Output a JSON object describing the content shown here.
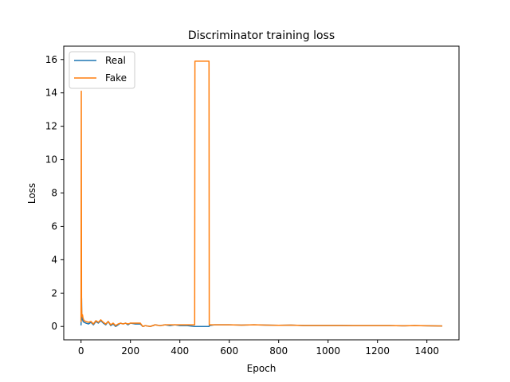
{
  "chart_data": {
    "type": "line",
    "title": "Discriminator training loss",
    "xlabel": "Epoch",
    "ylabel": "Loss",
    "xlim": [
      -70,
      1530
    ],
    "ylim": [
      -0.8,
      16.8
    ],
    "xticks": [
      0,
      200,
      400,
      600,
      800,
      1000,
      1200,
      1400
    ],
    "yticks": [
      0,
      2,
      4,
      6,
      8,
      10,
      12,
      14,
      16
    ],
    "grid": false,
    "legend_position": "top-left",
    "series": [
      {
        "name": "Real",
        "color": "#1f77b4",
        "x": [
          0,
          1,
          2,
          3,
          4,
          6,
          8,
          12,
          20,
          30,
          40,
          50,
          60,
          70,
          80,
          90,
          100,
          110,
          120,
          130,
          140,
          150,
          160,
          170,
          180,
          190,
          200,
          220,
          240,
          250,
          260,
          280,
          300,
          320,
          340,
          360,
          380,
          400,
          430,
          460,
          461,
          480,
          500,
          510,
          518,
          519,
          540,
          560,
          600,
          650,
          700,
          750,
          800,
          850,
          900,
          950,
          1000,
          1050,
          1100,
          1150,
          1200,
          1250,
          1300,
          1350,
          1400,
          1460
        ],
        "y": [
          0.1,
          0.6,
          1.7,
          0.6,
          0.4,
          0.5,
          0.3,
          0.25,
          0.2,
          0.15,
          0.25,
          0.1,
          0.3,
          0.2,
          0.35,
          0.2,
          0.1,
          0.3,
          0.05,
          0.15,
          0.0,
          0.1,
          0.2,
          0.15,
          0.2,
          0.1,
          0.2,
          0.15,
          0.15,
          0.0,
          0.05,
          0.0,
          0.1,
          0.05,
          0.1,
          0.05,
          0.1,
          0.05,
          0.05,
          0.0,
          0.0,
          0.0,
          0.0,
          0.0,
          0.0,
          0.05,
          0.1,
          0.1,
          0.1,
          0.08,
          0.1,
          0.08,
          0.07,
          0.08,
          0.06,
          0.06,
          0.06,
          0.06,
          0.05,
          0.05,
          0.05,
          0.05,
          0.04,
          0.05,
          0.04,
          0.03
        ]
      },
      {
        "name": "Fake",
        "color": "#ff7f0e",
        "x": [
          0,
          1,
          2,
          3,
          4,
          6,
          8,
          12,
          20,
          30,
          40,
          50,
          60,
          70,
          80,
          90,
          100,
          110,
          120,
          130,
          140,
          150,
          160,
          170,
          180,
          190,
          200,
          220,
          240,
          250,
          260,
          280,
          300,
          320,
          340,
          360,
          380,
          400,
          430,
          460,
          461,
          480,
          500,
          510,
          518,
          519,
          540,
          560,
          600,
          650,
          700,
          750,
          800,
          850,
          900,
          950,
          1000,
          1050,
          1100,
          1150,
          1200,
          1250,
          1300,
          1350,
          1400,
          1460
        ],
        "y": [
          0.3,
          14.1,
          1.2,
          0.8,
          0.6,
          0.7,
          0.5,
          0.35,
          0.3,
          0.25,
          0.3,
          0.15,
          0.35,
          0.25,
          0.4,
          0.25,
          0.15,
          0.3,
          0.1,
          0.2,
          0.05,
          0.15,
          0.2,
          0.15,
          0.2,
          0.15,
          0.2,
          0.2,
          0.2,
          0.0,
          0.05,
          0.0,
          0.1,
          0.05,
          0.1,
          0.1,
          0.1,
          0.1,
          0.1,
          0.1,
          15.9,
          15.9,
          15.9,
          15.9,
          15.9,
          0.1,
          0.1,
          0.1,
          0.1,
          0.08,
          0.1,
          0.08,
          0.07,
          0.08,
          0.06,
          0.06,
          0.06,
          0.06,
          0.05,
          0.05,
          0.05,
          0.05,
          0.04,
          0.05,
          0.04,
          0.03
        ]
      }
    ]
  }
}
